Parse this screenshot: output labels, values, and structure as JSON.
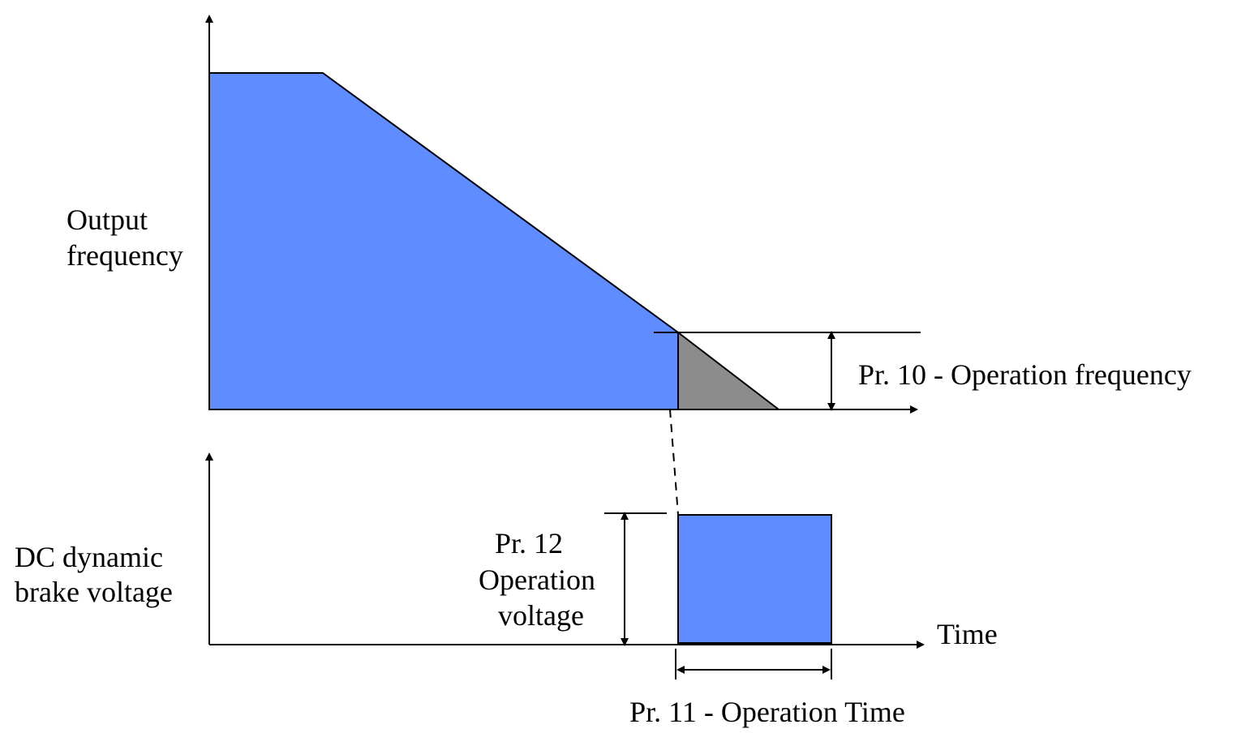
{
  "labels": {
    "output_frequency": [
      "Output",
      "frequency"
    ],
    "dc_voltage": [
      "DC dynamic",
      "brake voltage"
    ],
    "pr10": "Pr. 10 - Operation frequency",
    "pr12": [
      "Pr. 12",
      "Operation",
      "voltage"
    ],
    "time": "Time",
    "pr11": "Pr. 11 - Operation Time"
  }
}
